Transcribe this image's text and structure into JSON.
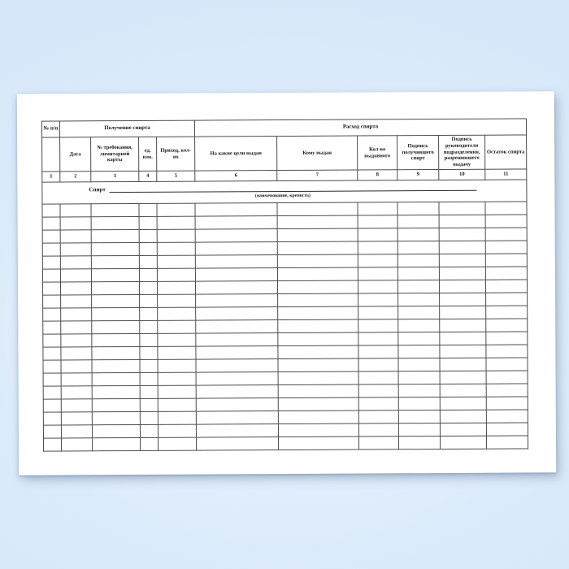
{
  "page": {
    "background_color": "#d9e9fb",
    "paper_color": "#ffffff",
    "border_color": "#4c4c4c"
  },
  "table": {
    "corner_label": "№ п/п",
    "groups": [
      {
        "label": "Получение спирта"
      },
      {
        "label": "Расход спирта"
      }
    ],
    "subheaders": [
      "Дата",
      "№ требования, лимитарной карты",
      "ед. изм.",
      "Приход, кол-во",
      "На какие цели выдан",
      "Кому выдан",
      "Кол-во выданного",
      "Подпись получившего спирт",
      "Подпись руководителя подразделения, разрешившего выдачу",
      "Остаток спирта"
    ],
    "column_numbers": [
      "1",
      "2",
      "3",
      "4",
      "5",
      "6",
      "7",
      "8",
      "9",
      "10",
      "11"
    ],
    "spirit_line": {
      "label": "Спирт",
      "caption": "(наименование, крепость)"
    },
    "body_row_count": 19,
    "column_count": 11
  }
}
